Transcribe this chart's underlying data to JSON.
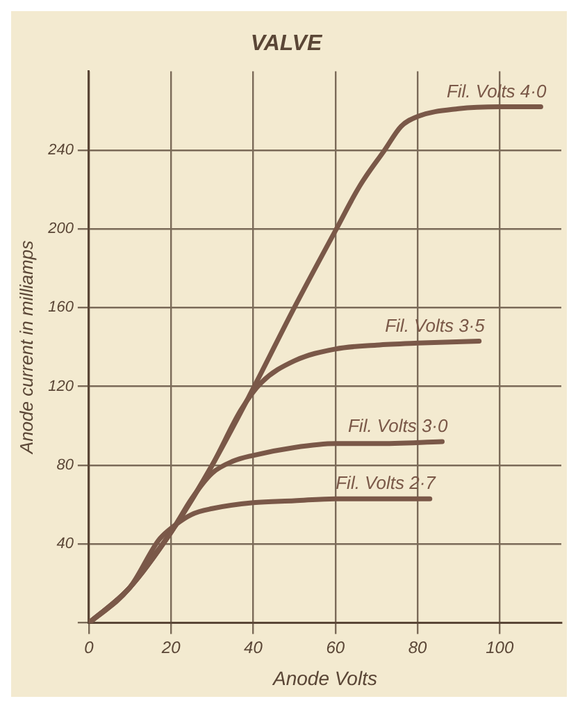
{
  "chart_data": {
    "type": "line",
    "title": "VALVE",
    "xlabel": "Anode Volts",
    "ylabel": "Anode current in milliamps",
    "xlim": [
      0,
      115
    ],
    "xticks": [
      0,
      20,
      40,
      60,
      80,
      100
    ],
    "ylim": [
      0,
      280
    ],
    "yticks": [
      {
        "value": 0,
        "label": null
      },
      40,
      80,
      120,
      160,
      200,
      240
    ],
    "grid": true,
    "legend": false,
    "marker": "none",
    "line_style": "solid",
    "series": [
      {
        "name": "Fil. Volts 4·0",
        "color": "#7a5848",
        "x": [
          0,
          5,
          10,
          15,
          20,
          30,
          40,
          50,
          60,
          66,
          72,
          76,
          80,
          90,
          100,
          110
        ],
        "values": [
          0,
          8,
          18,
          32,
          46,
          80,
          119,
          160,
          199,
          222,
          240,
          252,
          257,
          261,
          262,
          262
        ]
      },
      {
        "name": "Fil. Volts 3·5",
        "color": "#7a5848",
        "x": [
          0,
          10,
          20,
          30,
          37,
          42,
          50,
          60,
          70,
          80,
          95
        ],
        "values": [
          0,
          18,
          46,
          80,
          108,
          122,
          133,
          139,
          141,
          142,
          143
        ]
      },
      {
        "name": "Fil. Volts 3·0",
        "color": "#7a5848",
        "x": [
          0,
          10,
          20,
          25,
          30,
          35,
          40,
          50,
          60,
          70,
          86
        ],
        "values": [
          0,
          18,
          46,
          63,
          76,
          82,
          85,
          89,
          91,
          91,
          92
        ]
      },
      {
        "name": "Fil. Volts 2·7",
        "color": "#7a5848",
        "x": [
          0,
          10,
          17,
          20,
          25,
          30,
          40,
          50,
          60,
          70,
          83
        ],
        "values": [
          0,
          18,
          42,
          48,
          55,
          58,
          61,
          62,
          63,
          63,
          63
        ]
      }
    ]
  }
}
